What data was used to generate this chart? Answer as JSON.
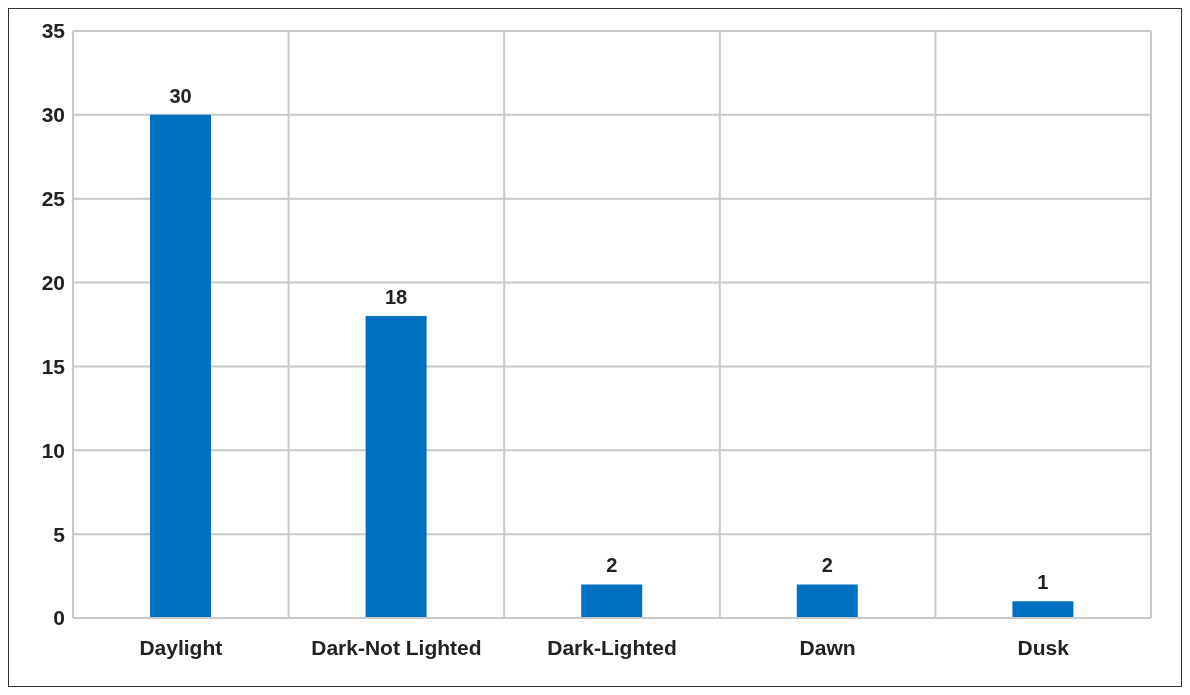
{
  "chart_data": {
    "type": "bar",
    "categories": [
      "Daylight",
      "Dark-Not Lighted",
      "Dark-Lighted",
      "Dawn",
      "Dusk"
    ],
    "values": [
      30,
      18,
      2,
      2,
      1
    ],
    "color": "#0070c0",
    "ylim": [
      0,
      35
    ],
    "yticks": [
      0,
      5,
      10,
      15,
      20,
      25,
      30,
      35
    ],
    "grid": true,
    "data_labels": true
  }
}
